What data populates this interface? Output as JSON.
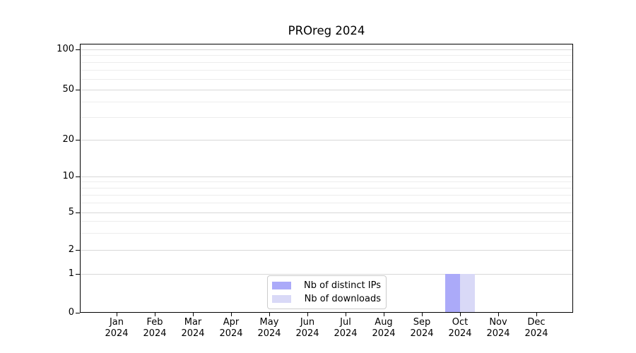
{
  "chart_data": {
    "type": "bar",
    "title": "PROreg 2024",
    "categories": [
      {
        "month": "Jan",
        "year": "2024"
      },
      {
        "month": "Feb",
        "year": "2024"
      },
      {
        "month": "Mar",
        "year": "2024"
      },
      {
        "month": "Apr",
        "year": "2024"
      },
      {
        "month": "May",
        "year": "2024"
      },
      {
        "month": "Jun",
        "year": "2024"
      },
      {
        "month": "Jul",
        "year": "2024"
      },
      {
        "month": "Aug",
        "year": "2024"
      },
      {
        "month": "Sep",
        "year": "2024"
      },
      {
        "month": "Oct",
        "year": "2024"
      },
      {
        "month": "Nov",
        "year": "2024"
      },
      {
        "month": "Dec",
        "year": "2024"
      }
    ],
    "series": [
      {
        "name": "Nb of distinct IPs",
        "color": "#abaaf9",
        "values": [
          0,
          0,
          0,
          0,
          0,
          0,
          0,
          0,
          0,
          1,
          0,
          0
        ]
      },
      {
        "name": "Nb of downloads",
        "color": "#d9d9f7",
        "values": [
          0,
          0,
          0,
          0,
          0,
          0,
          0,
          0,
          0,
          1,
          0,
          0
        ]
      }
    ],
    "xlabel": "",
    "ylabel": "",
    "yscale": "pseudo-log",
    "ylim": [
      0,
      108
    ],
    "y_ticks_major": [
      0,
      1,
      2,
      5,
      10,
      20,
      50,
      100
    ],
    "y_ticks_minor": [
      3,
      4,
      6,
      7,
      8,
      9,
      30,
      40,
      60,
      70,
      80,
      90
    ],
    "grid": "horizontal",
    "legend_position": "lower center",
    "colors": {
      "major_grid": "#d8d8d8",
      "minor_grid": "#ededed",
      "spine": "#000000",
      "text": "#000000",
      "legend_border": "#cccccc",
      "background": "#ffffff"
    }
  }
}
